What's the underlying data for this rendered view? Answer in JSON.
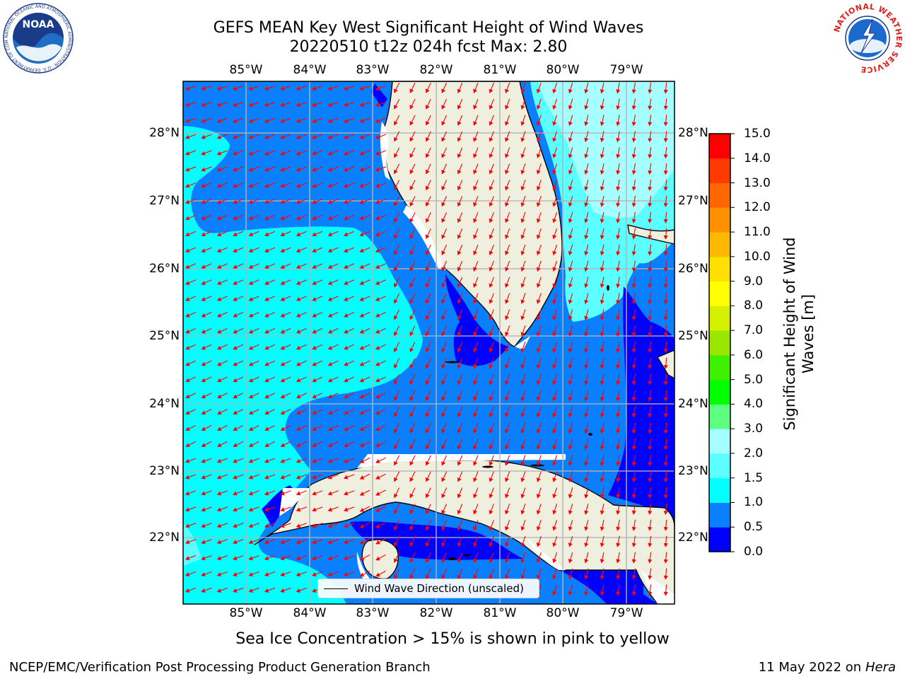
{
  "header": {
    "title_line1": "GEFS MEAN Key West Significant Height of Wind Waves",
    "title_line2": "20220510 t12z 024h fcst   Max: 2.80"
  },
  "logos": {
    "noaa": {
      "name": "NOAA",
      "ring_text": "NATIONAL OCEANIC AND ATMOSPHERIC ADMINISTRATION · U.S. DEPARTMENT OF COMMERCE"
    },
    "nws": {
      "ring_text": "NATIONAL WEATHER SERVICE"
    }
  },
  "map": {
    "lon_labels": [
      "85°W",
      "84°W",
      "83°W",
      "82°W",
      "81°W",
      "80°W",
      "79°W"
    ],
    "lat_labels": [
      "28°N",
      "27°N",
      "26°N",
      "25°N",
      "24°N",
      "23°N",
      "22°N"
    ],
    "legend_label": "Wind Wave Direction (unscaled)",
    "colors": {
      "land": "#efefdf",
      "coast": "#000000",
      "grid": "#b3b3b3",
      "arrow": "#ff0000",
      "missing": "#ffffff"
    }
  },
  "colorbar": {
    "title": "Significant Height of Wind Waves [m]",
    "ticks": [
      "15.0",
      "14.0",
      "13.0",
      "12.0",
      "11.0",
      "10.0",
      "9.0",
      "8.0",
      "7.0",
      "6.0",
      "5.0",
      "4.0",
      "3.0",
      "2.0",
      "1.5",
      "1.0",
      "0.5",
      "0.0"
    ],
    "colors_bottom_to_top": [
      "#0000ff",
      "#0a80ff",
      "#00ffff",
      "#5cffff",
      "#a6ffff",
      "#5cff80",
      "#00ff00",
      "#40f000",
      "#9ae600",
      "#d4f000",
      "#ffff00",
      "#ffe000",
      "#ffb800",
      "#ff9000",
      "#ff6800",
      "#ff3a00",
      "#ff0000"
    ]
  },
  "notes": {
    "sea_ice": "Sea Ice Concentration > 15% is shown in pink to yellow",
    "footer_left": "NCEP/EMC/Verification Post Processing Product Generation Branch",
    "footer_date": "11 May 2022 on",
    "footer_machine": "Hera"
  }
}
